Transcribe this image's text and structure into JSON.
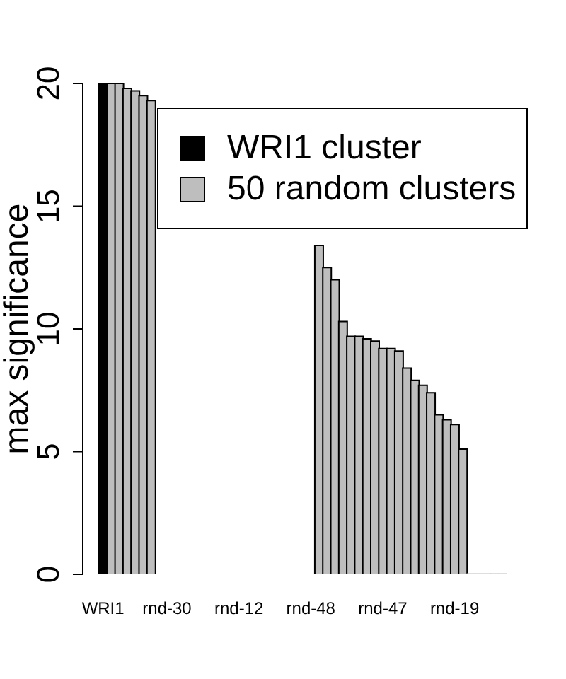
{
  "chart_data": {
    "type": "bar",
    "ylabel": "max significance",
    "categories": [
      "WRI1",
      null,
      null,
      null,
      null,
      null,
      null,
      null,
      "rnd-30",
      null,
      null,
      null,
      null,
      null,
      null,
      null,
      null,
      "rnd-12",
      null,
      null,
      null,
      null,
      null,
      null,
      null,
      null,
      "rnd-48",
      null,
      null,
      null,
      null,
      null,
      null,
      null,
      null,
      "rnd-47",
      null,
      null,
      null,
      null,
      null,
      null,
      null,
      null,
      "rnd-19",
      null,
      null,
      null,
      null,
      null,
      null
    ],
    "series": [
      {
        "name": "WRI1 cluster",
        "color": "#000000",
        "values": [
          20,
          null,
          null,
          null,
          null,
          null,
          null,
          null,
          null,
          null,
          null,
          null,
          null,
          null,
          null,
          null,
          null,
          null,
          null,
          null,
          null,
          null,
          null,
          null,
          null,
          null,
          null,
          null,
          null,
          null,
          null,
          null,
          null,
          null,
          null,
          null,
          null,
          null,
          null,
          null,
          null,
          null,
          null,
          null,
          null,
          null,
          null,
          null,
          null,
          null,
          null
        ]
      },
      {
        "name": "50 random clusters",
        "color": "#bebebe",
        "values": [
          null,
          20,
          20,
          19.8,
          19.7,
          19.5,
          19.3,
          null,
          null,
          null,
          null,
          null,
          null,
          null,
          null,
          null,
          null,
          null,
          null,
          null,
          null,
          null,
          null,
          null,
          null,
          null,
          null,
          13.4,
          12.5,
          12.0,
          10.3,
          9.7,
          9.7,
          9.6,
          9.5,
          9.2,
          9.2,
          9.1,
          8.4,
          7.9,
          7.7,
          7.4,
          6.5,
          6.3,
          6.1,
          5.1,
          0,
          0,
          0,
          0,
          0
        ]
      }
    ],
    "ylim": [
      0,
      20
    ],
    "yticks": [
      0,
      5,
      10,
      15,
      20
    ],
    "legend": "top right"
  }
}
